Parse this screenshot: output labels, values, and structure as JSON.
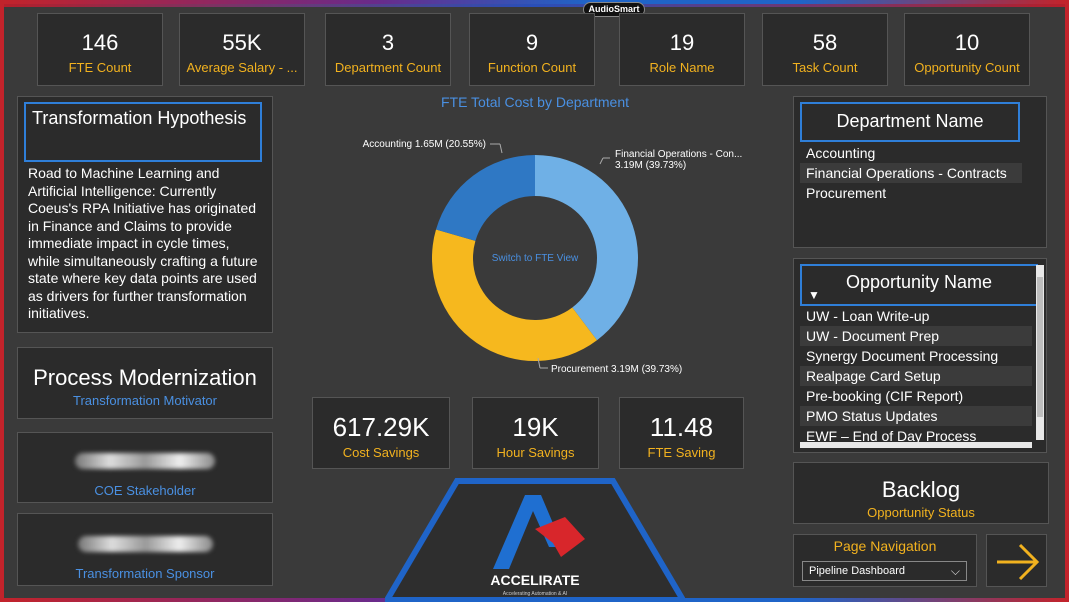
{
  "brand": "AudioSmart",
  "kpis": [
    {
      "value": "146",
      "label": "FTE Count"
    },
    {
      "value": "55K",
      "label": "Average Salary - ..."
    },
    {
      "value": "3",
      "label": "Department Count"
    },
    {
      "value": "9",
      "label": "Function Count"
    },
    {
      "value": "19",
      "label": "Role Name"
    },
    {
      "value": "58",
      "label": "Task Count"
    },
    {
      "value": "10",
      "label": "Opportunity  Count"
    }
  ],
  "hypothesis": {
    "title": "Transformation Hypothesis",
    "text": "Road to Machine Learning and Artificial Intelligence: Currently Coeus's RPA Initiative has originated in Finance and Claims to provide immediate impact in cycle times, while simultaneously crafting a future state where key data points are used as drivers for further transformation initiatives."
  },
  "modernization": {
    "title": "Process Modernization",
    "subtitle": "Transformation Motivator"
  },
  "stakeholder": {
    "label": "COE Stakeholder"
  },
  "sponsor": {
    "label": "Transformation Sponsor"
  },
  "chart_data": {
    "type": "pie",
    "title": "FTE Total Cost by Department",
    "center_label": "Switch to FTE View",
    "slices": [
      {
        "name": "Financial Operations - Con...",
        "value": 3.19,
        "label": "Financial Operations - Con...",
        "value_label": "3.19M (39.73%)",
        "color": "#6fb0e6"
      },
      {
        "name": "Procurement",
        "value": 3.19,
        "label": "Procurement 3.19M (39.73%)",
        "color": "#f6b81e"
      },
      {
        "name": "Accounting",
        "value": 1.65,
        "label": "Accounting 1.65M (20.55%)",
        "color": "#2f78c4"
      }
    ]
  },
  "stats": [
    {
      "value": "617.29K",
      "label": "Cost Savings"
    },
    {
      "value": "19K",
      "label": "Hour Savings"
    },
    {
      "value": "11.48",
      "label": "FTE Saving"
    }
  ],
  "logo": {
    "text": "ACCELIRATE",
    "tagline": "Accelerating Automation & AI",
    "colors": {
      "blue": "#1f6fd1",
      "red": "#d8262b"
    }
  },
  "department": {
    "title": "Department Name",
    "items": [
      "Accounting",
      "Financial Operations - Contracts",
      "Procurement"
    ]
  },
  "opportunity": {
    "title": "Opportunity Name",
    "items": [
      "UW - Loan Write-up",
      "UW - Document Prep",
      "Synergy Document Processing",
      "Realpage Card Setup",
      "Pre-booking (CIF Report)",
      "PMO Status Updates",
      "EWF – End of Day Process"
    ]
  },
  "backlog": {
    "title": "Backlog",
    "subtitle": "Opportunity Status"
  },
  "navigation": {
    "title": "Page Navigation",
    "selected": "Pipeline Dashboard"
  }
}
